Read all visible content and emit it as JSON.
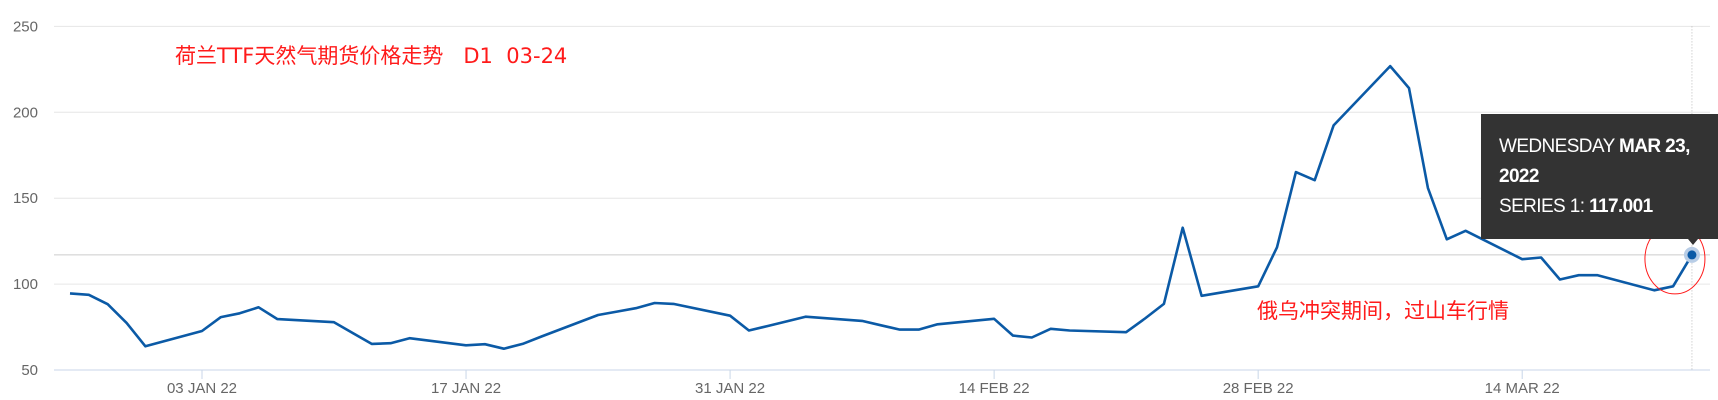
{
  "chart_data": {
    "type": "line",
    "title": "荷兰TTF天然气期货价格走势   D1  03-24",
    "annotation": "俄乌冲突期间，过山车行情",
    "ylim": [
      50,
      250
    ],
    "yticks": [
      50,
      100,
      150,
      200,
      250
    ],
    "xticks": [
      {
        "date": "2022-01-03",
        "label": "03 JAN 22"
      },
      {
        "date": "2022-01-17",
        "label": "17 JAN 22"
      },
      {
        "date": "2022-01-31",
        "label": "31 JAN 22"
      },
      {
        "date": "2022-02-14",
        "label": "14 FEB 22"
      },
      {
        "date": "2022-02-28",
        "label": "28 FEB 22"
      },
      {
        "date": "2022-03-14",
        "label": "14 MAR 22"
      }
    ],
    "grid": true,
    "line_color": "#0b5aa6",
    "annotation_color": "#ff1a1a",
    "series": [
      {
        "points": [
          [
            "2021-12-27",
            94.6
          ],
          [
            "2021-12-28",
            93.8
          ],
          [
            "2021-12-29",
            88.3
          ],
          [
            "2021-12-30",
            77.4
          ],
          [
            "2021-12-31",
            63.8
          ],
          [
            "2022-01-03",
            72.7
          ],
          [
            "2022-01-04",
            80.8
          ],
          [
            "2022-01-05",
            83.0
          ],
          [
            "2022-01-06",
            86.5
          ],
          [
            "2022-01-07",
            79.6
          ],
          [
            "2022-01-10",
            77.8
          ],
          [
            "2022-01-11",
            71.5
          ],
          [
            "2022-01-12",
            65.2
          ],
          [
            "2022-01-13",
            65.6
          ],
          [
            "2022-01-14",
            68.5
          ],
          [
            "2022-01-17",
            64.4
          ],
          [
            "2022-01-18",
            65.0
          ],
          [
            "2022-01-19",
            62.4
          ],
          [
            "2022-01-20",
            65.2
          ],
          [
            "2022-01-21",
            69.5
          ],
          [
            "2022-01-24",
            82.0
          ],
          [
            "2022-01-25",
            84.0
          ],
          [
            "2022-01-26",
            86.0
          ],
          [
            "2022-01-27",
            89.0
          ],
          [
            "2022-01-28",
            88.5
          ],
          [
            "2022-01-31",
            81.6
          ],
          [
            "2022-02-01",
            73.0
          ],
          [
            "2022-02-02",
            75.6
          ],
          [
            "2022-02-03",
            78.3
          ],
          [
            "2022-02-04",
            81.0
          ],
          [
            "2022-02-07",
            78.6
          ],
          [
            "2022-02-08",
            76.0
          ],
          [
            "2022-02-09",
            73.5
          ],
          [
            "2022-02-10",
            73.5
          ],
          [
            "2022-02-11",
            76.6
          ],
          [
            "2022-02-14",
            79.8
          ],
          [
            "2022-02-15",
            70.0
          ],
          [
            "2022-02-16",
            68.9
          ],
          [
            "2022-02-17",
            74.0
          ],
          [
            "2022-02-18",
            73.0
          ],
          [
            "2022-02-21",
            72.0
          ],
          [
            "2022-02-22",
            80.0
          ],
          [
            "2022-02-23",
            88.5
          ],
          [
            "2022-02-24",
            132.8
          ],
          [
            "2022-02-25",
            93.2
          ],
          [
            "2022-02-28",
            98.7
          ],
          [
            "2022-03-01",
            121.4
          ],
          [
            "2022-03-02",
            165.2
          ],
          [
            "2022-03-03",
            160.5
          ],
          [
            "2022-03-04",
            192.4
          ],
          [
            "2022-03-07",
            226.9
          ],
          [
            "2022-03-08",
            214.1
          ],
          [
            "2022-03-09",
            156.0
          ],
          [
            "2022-03-10",
            126.1
          ],
          [
            "2022-03-11",
            131.0
          ],
          [
            "2022-03-14",
            114.5
          ],
          [
            "2022-03-15",
            115.5
          ],
          [
            "2022-03-16",
            102.7
          ],
          [
            "2022-03-17",
            105.2
          ],
          [
            "2022-03-18",
            105.2
          ],
          [
            "2022-03-21",
            96.4
          ],
          [
            "2022-03-22",
            98.7
          ],
          [
            "2022-03-23",
            117.001
          ]
        ]
      }
    ],
    "tooltip": {
      "day": "WEDNESDAY",
      "date": "MAR 23,",
      "year": "2022",
      "series_label": "SERIES 1:",
      "value": "117.001"
    }
  }
}
